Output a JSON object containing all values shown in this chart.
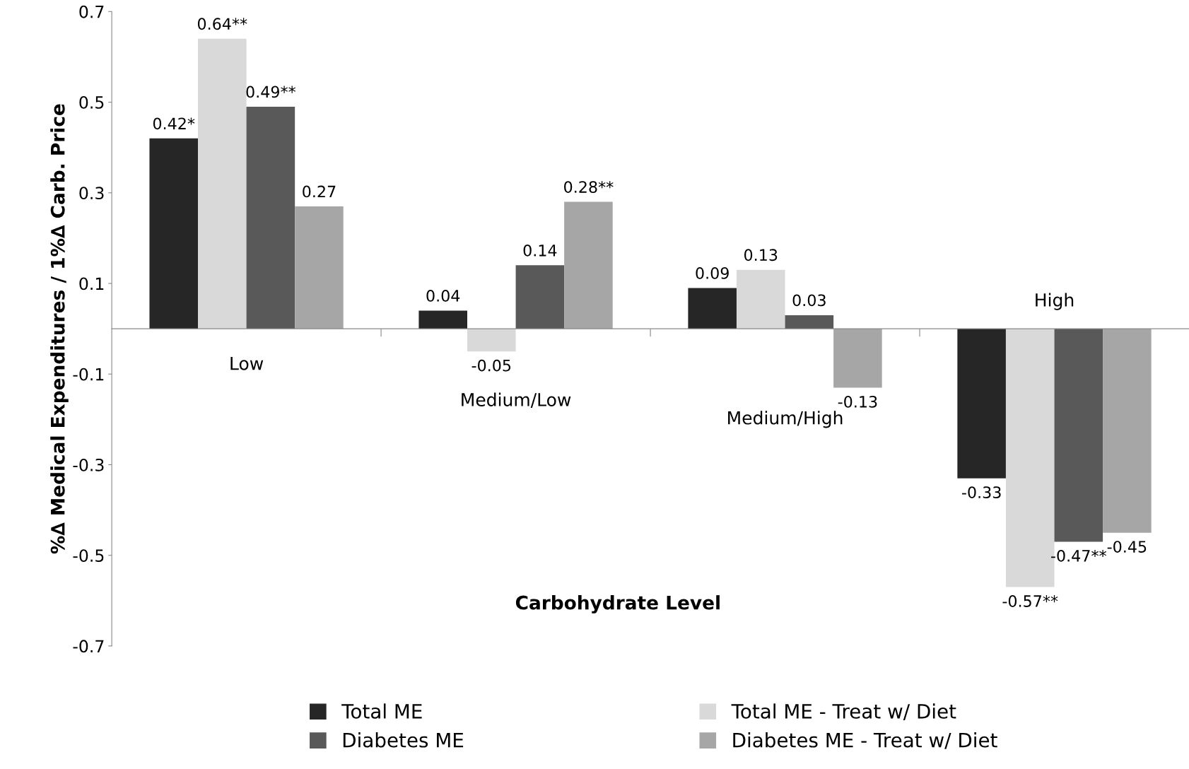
{
  "chart_data": {
    "type": "bar",
    "xlabel": "Carbohydrate Level",
    "ylabel": "%∆ Medical Expenditures / 1%∆ Carb. Price",
    "categories": [
      "Low",
      "Medium/Low",
      "Medium/High",
      "High"
    ],
    "series": [
      {
        "name": "Total ME",
        "color": "#262626",
        "values": [
          0.42,
          0.04,
          0.09,
          -0.33
        ],
        "value_labels": [
          "0.42*",
          "0.04",
          "0.09",
          "-0.33"
        ]
      },
      {
        "name": "Total ME - Treat w/ Diet",
        "color": "#d9d9d9",
        "values": [
          0.64,
          -0.05,
          0.13,
          -0.57
        ],
        "value_labels": [
          "0.64**",
          "-0.05",
          "0.13",
          "-0.57**"
        ]
      },
      {
        "name": "Diabetes ME",
        "color": "#595959",
        "values": [
          0.49,
          0.14,
          0.03,
          -0.47
        ],
        "value_labels": [
          "0.49**",
          "0.14",
          "0.03",
          "-0.47**"
        ]
      },
      {
        "name": "Diabetes ME - Treat w/ Diet",
        "color": "#a6a6a6",
        "values": [
          0.27,
          0.28,
          -0.13,
          -0.45
        ],
        "value_labels": [
          "0.27",
          "0.28**",
          "-0.13",
          "-0.45"
        ]
      }
    ],
    "ylim": [
      -0.7,
      0.7
    ],
    "yticks": [
      -0.7,
      -0.5,
      -0.3,
      -0.1,
      0.1,
      0.3,
      0.5,
      0.7
    ],
    "grid": false,
    "legend": "bottom"
  }
}
